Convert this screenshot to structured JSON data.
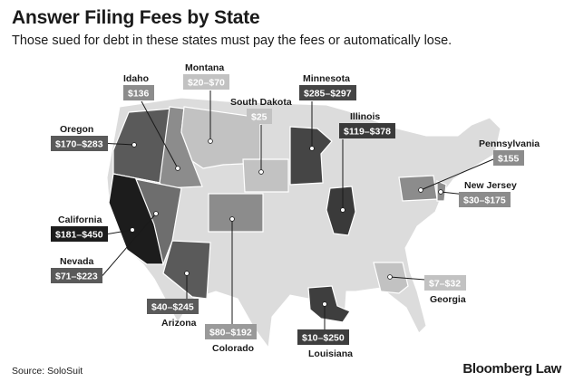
{
  "header": {
    "title": "Answer Filing Fees by State",
    "subtitle": "Those sued for debt in these states must pay the fees or automatically lose."
  },
  "footer": {
    "source": "Source: SoloSuit",
    "brand": "Bloomberg Law"
  },
  "colors": {
    "background": "#ffffff",
    "unlisted_state": "#dcdcdc",
    "state_border": "#ffffff",
    "leader_line": "#1a1a1a"
  },
  "states": [
    {
      "name": "Idaho",
      "fee": "$136",
      "fill": "#8c8c8c",
      "badge": "#8c8c8c"
    },
    {
      "name": "Montana",
      "fee": "$20–$70",
      "fill": "#c2c2c2",
      "badge": "#c2c2c2"
    },
    {
      "name": "South Dakota",
      "fee": "$25",
      "fill": "#c2c2c2",
      "badge": "#c2c2c2"
    },
    {
      "name": "Minnesota",
      "fee": "$285–$297",
      "fill": "#454545",
      "badge": "#454545"
    },
    {
      "name": "Oregon",
      "fee": "$170–$283",
      "fill": "#5a5a5a",
      "badge": "#5a5a5a"
    },
    {
      "name": "Illinois",
      "fee": "$119–$378",
      "fill": "#3a3a3a",
      "badge": "#3a3a3a"
    },
    {
      "name": "Pennsylvania",
      "fee": "$155",
      "fill": "#8c8c8c",
      "badge": "#8c8c8c"
    },
    {
      "name": "New Jersey",
      "fee": "$30–$175",
      "fill": "#8c8c8c",
      "badge": "#8c8c8c"
    },
    {
      "name": "California",
      "fee": "$181–$450",
      "fill": "#1c1c1c",
      "badge": "#1c1c1c"
    },
    {
      "name": "Nevada",
      "fee": "$71–$223",
      "fill": "#6e6e6e",
      "badge": "#5a5a5a"
    },
    {
      "name": "Arizona",
      "fee": "$40–$245",
      "fill": "#5a5a5a",
      "badge": "#5a5a5a"
    },
    {
      "name": "Colorado",
      "fee": "$80–$192",
      "fill": "#8c8c8c",
      "badge": "#9a9a9a"
    },
    {
      "name": "Louisiana",
      "fee": "$10–$250",
      "fill": "#3e3e3e",
      "badge": "#3e3e3e"
    },
    {
      "name": "Georgia",
      "fee": "$7–$32",
      "fill": "#c2c2c2",
      "badge": "#c2c2c2"
    }
  ]
}
